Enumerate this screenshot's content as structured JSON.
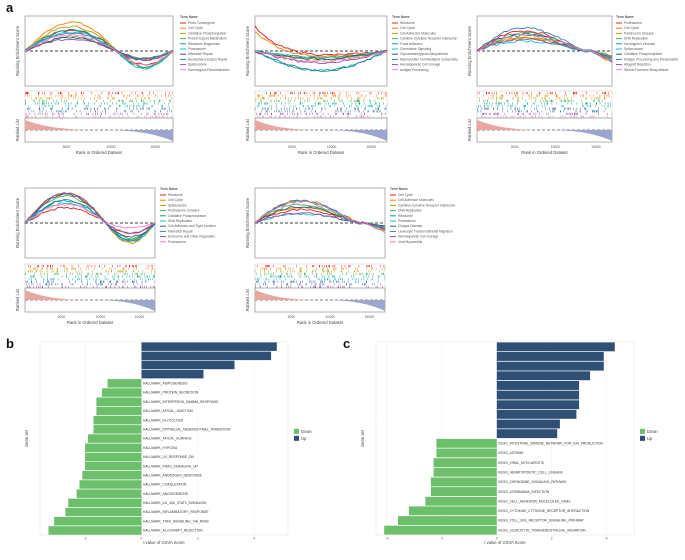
{
  "panel_labels": {
    "a": "a",
    "b": "b",
    "c": "c"
  },
  "gsea": {
    "x_label": "Rank in Ordered Dataset",
    "y_label_top": "Running Enrichment Score",
    "y_label_bottom": "Ranked List",
    "legend_title": "Term Name",
    "panels": [
      {
        "id": "p1",
        "x_ticks": [
          "5000",
          "10000",
          "15000"
        ],
        "terms": [
          {
            "name": "Proto-Tumorigenic",
            "color": "#e41a1c"
          },
          {
            "name": "Cell Cycle",
            "color": "#ff7f00"
          },
          {
            "name": "Oxidative Phosphorylation",
            "color": "#b8a000"
          },
          {
            "name": "Protein Export Metabolism",
            "color": "#4daf4a"
          },
          {
            "name": "Ribosome Biogenesis",
            "color": "#00a087"
          },
          {
            "name": "Proteasome",
            "color": "#17becf"
          },
          {
            "name": "Mismatch Repair",
            "color": "#3c5488"
          },
          {
            "name": "Nucleotide Excision Repair",
            "color": "#377eb8"
          },
          {
            "name": "Spliceosome",
            "color": "#984ea3"
          },
          {
            "name": "Homologous Recombination",
            "color": "#f781bf"
          }
        ]
      },
      {
        "id": "p2",
        "x_ticks": [
          "5000",
          "10000",
          "15000"
        ],
        "terms": [
          {
            "name": "Ribosome",
            "color": "#e41a1c"
          },
          {
            "name": "Cell Cycle",
            "color": "#ff7f00"
          },
          {
            "name": "Cell Adhesion Molecules",
            "color": "#b8a000"
          },
          {
            "name": "Cytokine-Cytokine Receptor Interaction",
            "color": "#4daf4a"
          },
          {
            "name": "Focal Adhesion",
            "color": "#00a087"
          },
          {
            "name": "Chemokine Signaling",
            "color": "#17becf"
          },
          {
            "name": "Glycosaminoglycan Biosynthesis",
            "color": "#3c5488"
          },
          {
            "name": "Natural Killer Cell Mediated Cytotoxicity",
            "color": "#377eb8"
          },
          {
            "name": "Hematopoietic Cell Lineage",
            "color": "#984ea3"
          },
          {
            "name": "Antigen Processing",
            "color": "#f781bf"
          }
        ]
      },
      {
        "id": "p3",
        "x_ticks": [
          "5000",
          "10000",
          "15000"
        ],
        "terms": [
          {
            "name": "Proteasome",
            "color": "#e41a1c"
          },
          {
            "name": "Cell Cycle",
            "color": "#ff7f00"
          },
          {
            "name": "Parkinson's Disease",
            "color": "#b8a000"
          },
          {
            "name": "DNA Replication",
            "color": "#4daf4a"
          },
          {
            "name": "Huntington's Disease",
            "color": "#00a087"
          },
          {
            "name": "Spliceosome",
            "color": "#17becf"
          },
          {
            "name": "Oxidative Phosphorylation",
            "color": "#3c5488"
          },
          {
            "name": "Antigen Processing and Presentation",
            "color": "#377eb8"
          },
          {
            "name": "Allograft Rejection",
            "color": "#984ea3"
          },
          {
            "name": "Steroid Hormone Biosynthesis",
            "color": "#f781bf"
          }
        ]
      },
      {
        "id": "p4",
        "x_ticks": [
          "5000",
          "10000",
          "15000"
        ],
        "terms": [
          {
            "name": "Ribosome",
            "color": "#e41a1c"
          },
          {
            "name": "Cell Cycle",
            "color": "#ff7f00"
          },
          {
            "name": "Spliceosome",
            "color": "#b8a000"
          },
          {
            "name": "Proteasome Complex",
            "color": "#4daf4a"
          },
          {
            "name": "Oxidative Phosphorylation",
            "color": "#00a087"
          },
          {
            "name": "DNA Replication",
            "color": "#17becf"
          },
          {
            "name": "Cell Adhesion and Tight Junction",
            "color": "#3c5488"
          },
          {
            "name": "Mismatch Repair",
            "color": "#377eb8"
          },
          {
            "name": "Endocrine and Other Regulation",
            "color": "#984ea3"
          },
          {
            "name": "Proteasome",
            "color": "#f781bf"
          }
        ]
      },
      {
        "id": "p5",
        "x_ticks": [
          "5000",
          "10000",
          "15000"
        ],
        "terms": [
          {
            "name": "Cell Cycle",
            "color": "#e41a1c"
          },
          {
            "name": "Cell Adhesion Molecules",
            "color": "#ff7f00"
          },
          {
            "name": "Cytokine-Cytokine Receptor Interaction",
            "color": "#b8a000"
          },
          {
            "name": "DNA Replication",
            "color": "#4daf4a"
          },
          {
            "name": "Ribosome",
            "color": "#00a087"
          },
          {
            "name": "Proteasome",
            "color": "#17becf"
          },
          {
            "name": "Chagas Disease",
            "color": "#3c5488"
          },
          {
            "name": "Leukocyte Transendothelial Migration",
            "color": "#377eb8"
          },
          {
            "name": "Hematopoietic Cell Lineage",
            "color": "#984ea3"
          },
          {
            "name": "Viral Myocarditis",
            "color": "#f781bf"
          }
        ]
      }
    ]
  },
  "chart_data": [
    {
      "type": "bar",
      "id": "b",
      "title": "",
      "xlabel": "t value of GSVA Score",
      "ylabel": "Gene set",
      "xlim": [
        -3.6,
        5.2
      ],
      "x_ticks": [
        -2,
        0,
        2,
        4
      ],
      "legend": [
        {
          "name": "Down",
          "color": "#6dbf6b"
        },
        {
          "name": "Up",
          "color": "#2f4f75"
        }
      ],
      "categories": [
        "HALLMARK_E2F_TARGETS",
        "HALLMARK_G2M_CHECKPOINT",
        "HALLMARK_SPERMATOGENESIS",
        "HALLMARK_DNA_REPAIR",
        "HALLMARK_ADIPOGENESIS",
        "HALLMARK_PROTEIN_SECRETION",
        "HALLMARK_INTERFERON_GAMMA_RESPONSE",
        "HALLMARK_APICAL_JUNCTION",
        "HALLMARK_GLYCOLYSIS",
        "HALLMARK_EPITHELIAL_MESENCHYMAL_TRANSITION",
        "HALLMARK_APICAL_SURFACE",
        "HALLMARK_HYPOXIA",
        "HALLMARK_UV_RESPONSE_DN",
        "HALLMARK_KRAS_SIGNALING_UP",
        "HALLMARK_ANDROGEN_RESPONSE",
        "HALLMARK_COAGULATION",
        "HALLMARK_ANGIOGENESIS",
        "HALLMARK_IL6_JAK_STAT3_SIGNALING",
        "HALLMARK_INFLAMMATORY_RESPONSE",
        "HALLMARK_TNFA_SIGNALING_VIA_NFKB",
        "HALLMARK_ALLOGRAFT_REJECTION"
      ],
      "values": [
        4.8,
        4.6,
        3.3,
        2.2,
        -1.2,
        -1.4,
        -1.6,
        -1.6,
        -1.7,
        -1.7,
        -1.9,
        -2.0,
        -2.0,
        -2.0,
        -2.1,
        -2.2,
        -2.3,
        -2.6,
        -2.7,
        -3.1,
        -3.3
      ]
    },
    {
      "type": "bar",
      "id": "c",
      "title": "",
      "xlabel": "t value of GSVA Score",
      "ylabel": "Gene set",
      "xlim": [
        -4.4,
        5.0
      ],
      "x_ticks": [
        -4,
        -2,
        0,
        2,
        4
      ],
      "legend": [
        {
          "name": "Down",
          "color": "#6dbf6b"
        },
        {
          "name": "Up",
          "color": "#2f4f75"
        }
      ],
      "categories": [
        "KEGG_DNA_REPLICATION",
        "KEGG_CELL_CYCLE",
        "KEGG_NUCLEOTIDE_EXCISION_REPAIR",
        "KEGG_HOMOLOGOUS_RECOMBINATION",
        "KEGG_TYROSINE_METABOLISM",
        "KEGG_BASE_EXCISION_REPAIR",
        "KEGG_SPLICEOSOME",
        "KEGG_MISMATCH_REPAIR",
        "KEGG_GLYCOSYLPHOSPHATIDYLINOSITOL_GPI_ANCHOR_BIOSYNTHESIS",
        "KEGG_RNA_POLYMERASE",
        "KEGG_INTESTINAL_IMMUNE_NETWORK_FOR_IGA_PRODUCTION",
        "KEGG_ASTHMA",
        "KEGG_VIRAL_MYOCARDITIS",
        "KEGG_HEMATOPOIETIC_CELL_LINEAGE",
        "KEGG_CHEMOKINE_SIGNALING_PATHWAY",
        "KEGG_LEISHMANIA_INFECTION",
        "KEGG_CELL_ADHESION_MOLECULES_CAMS",
        "KEGG_CYTOKINE_CYTOKINE_RECEPTOR_INTERACTION",
        "KEGG_TOLL_LIKE_RECEPTOR_SIGNALING_PATHWAY",
        "KEGG_LEUKOCYTE_TRANSENDOTHELIAL_MIGRATION"
      ],
      "values": [
        4.3,
        3.9,
        3.9,
        3.4,
        3.0,
        3.0,
        3.0,
        2.9,
        2.3,
        2.2,
        -2.2,
        -2.2,
        -2.3,
        -2.3,
        -2.4,
        -2.4,
        -2.6,
        -3.2,
        -3.6,
        -4.1
      ]
    }
  ]
}
